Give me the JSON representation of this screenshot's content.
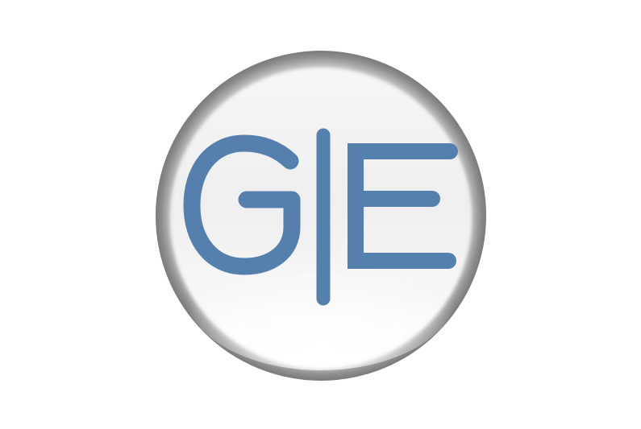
{
  "logo": {
    "text": "G|E",
    "letter_color": "#5580ae"
  }
}
